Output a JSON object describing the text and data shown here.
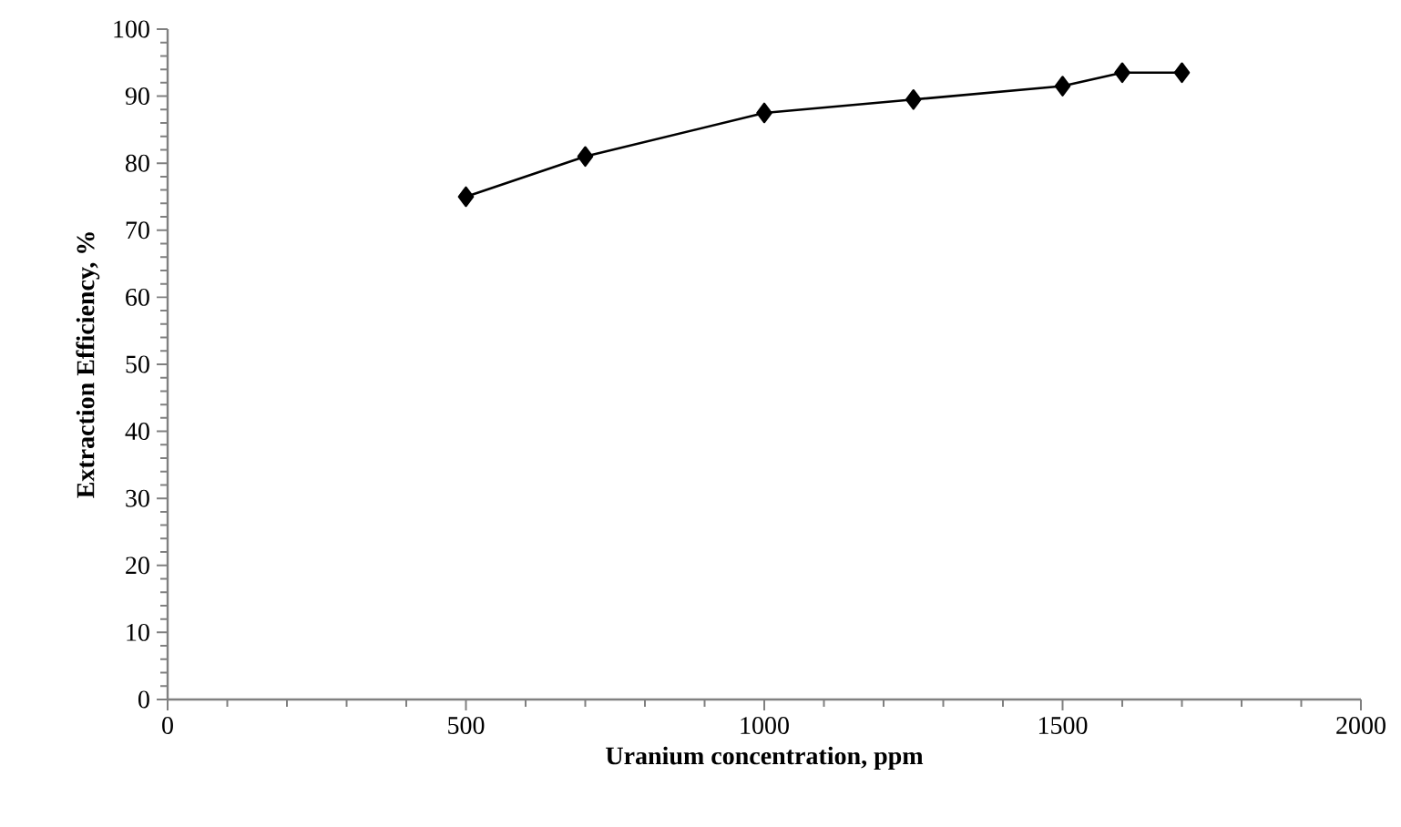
{
  "chart_data": {
    "type": "line",
    "xlabel": "Uranium  concentration, ppm",
    "ylabel": "Extraction Efficiency, %",
    "x": [
      500,
      700,
      1000,
      1250,
      1500,
      1600,
      1700
    ],
    "series": [
      {
        "color": "#000000",
        "values": [
          75,
          81,
          87.5,
          89.5,
          91.5,
          93.5,
          93.5
        ]
      }
    ],
    "xlim": [
      0,
      2000
    ],
    "xticks": [
      0,
      500,
      1000,
      1500,
      2000
    ],
    "ylim": [
      0,
      100
    ],
    "yticks": [
      0,
      10,
      20,
      30,
      40,
      50,
      60,
      70,
      80,
      90,
      100
    ],
    "grid": false,
    "marker": "diamond",
    "line_style": "solid"
  }
}
